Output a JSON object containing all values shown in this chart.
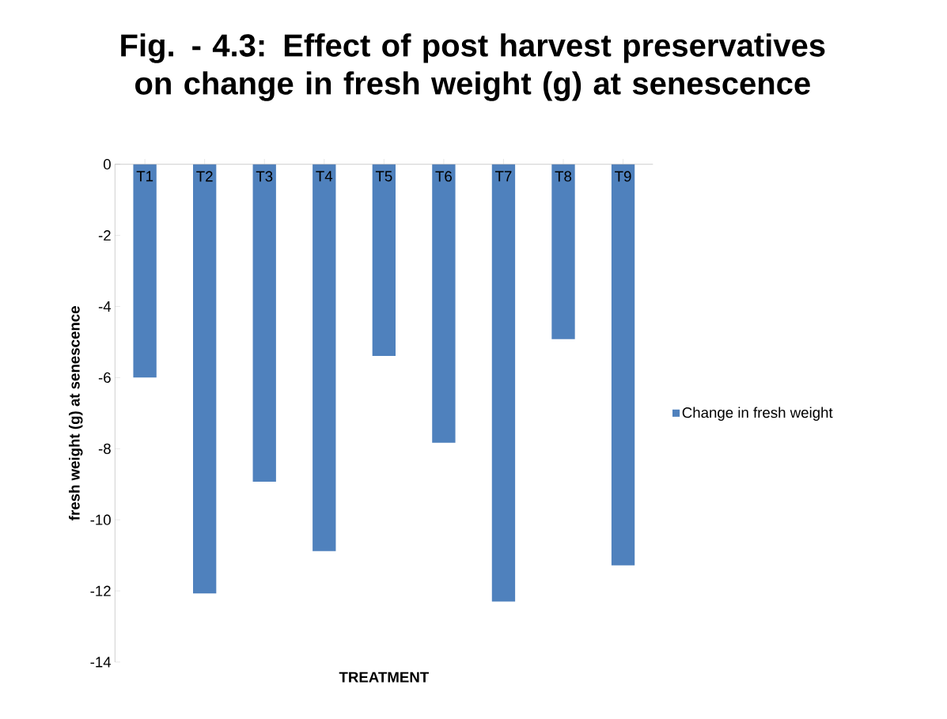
{
  "chart_data": {
    "type": "bar",
    "title": "Fig. - 4.3: Effect of post harvest preservatives on change in fresh weight (g) at senescence",
    "xlabel": "TREATMENT",
    "ylabel": "fresh weight (g) at senescence",
    "categories": [
      "T1",
      "T2",
      "T3",
      "T4",
      "T5",
      "T6",
      "T7",
      "T8",
      "T9"
    ],
    "series": [
      {
        "name": "Change in fresh weight",
        "color": "#4f81bd",
        "values": [
          -6.0,
          -12.07,
          -8.93,
          -10.88,
          -5.39,
          -7.83,
          -12.3,
          -4.92,
          -11.28
        ]
      }
    ],
    "ylim": [
      -14,
      0
    ],
    "yticks": [
      -14,
      -12,
      -10,
      -8,
      -6,
      -4,
      -2,
      0
    ],
    "grid": false,
    "legend": "right"
  }
}
